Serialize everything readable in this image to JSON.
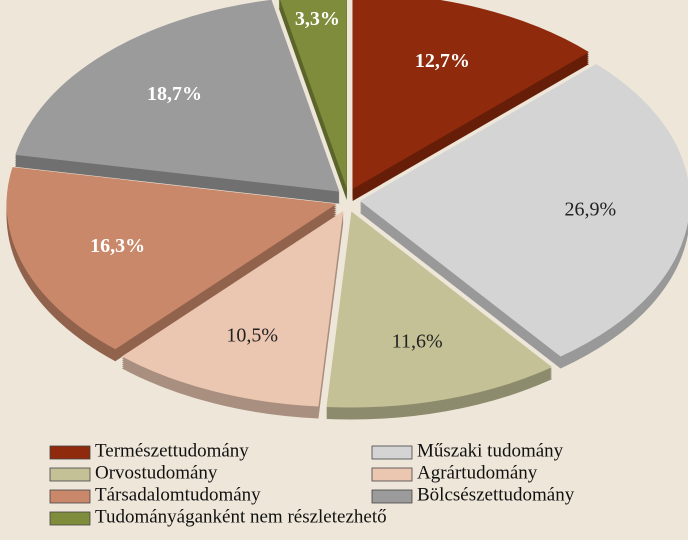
{
  "chart_data": {
    "type": "pie",
    "categories": [
      "Természettudomány",
      "Műszaki tudomány",
      "Orvostudomány",
      "Agrártudomány",
      "Társadalomtudomány",
      "Bölcsészettudomány",
      "Tudományáganként nem részletezhető"
    ],
    "values": [
      12.7,
      26.9,
      11.6,
      10.5,
      16.3,
      18.7,
      3.3
    ],
    "value_labels": [
      "12,7%",
      "26,9%",
      "11,6%",
      "10,5%",
      "16,3%",
      "18,7%",
      "3,3%"
    ],
    "colors": [
      "#8f2a0d",
      "#d4d4d4",
      "#c4c197",
      "#ebc6b1",
      "#c9886a",
      "#9b9b9b",
      "#7f8c3c"
    ]
  }
}
